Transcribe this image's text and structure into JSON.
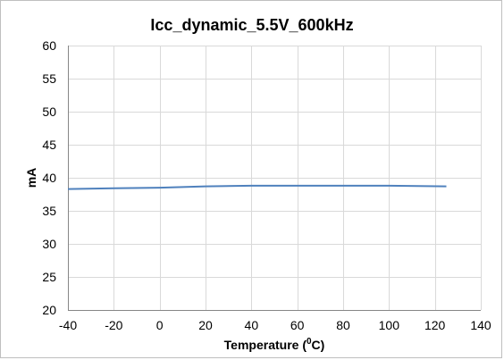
{
  "chart_data": {
    "type": "line",
    "title": "Icc_dynamic_5.5V_600kHz",
    "xlabel": "Temperature (",
    "xlabel_sup": "0",
    "xlabel_end": "C)",
    "ylabel": "mA",
    "xlim": [
      -40,
      140
    ],
    "ylim": [
      20,
      60
    ],
    "xticks": [
      -40,
      -20,
      0,
      20,
      40,
      60,
      80,
      100,
      120,
      140
    ],
    "yticks": [
      20,
      25,
      30,
      35,
      40,
      45,
      50,
      55,
      60
    ],
    "grid": true,
    "series": [
      {
        "color": "#4f81bd",
        "x": [
          -40,
          -20,
          0,
          20,
          40,
          60,
          80,
          100,
          125
        ],
        "y": [
          38.3,
          38.4,
          38.5,
          38.7,
          38.8,
          38.8,
          38.8,
          38.8,
          38.7
        ]
      }
    ]
  }
}
